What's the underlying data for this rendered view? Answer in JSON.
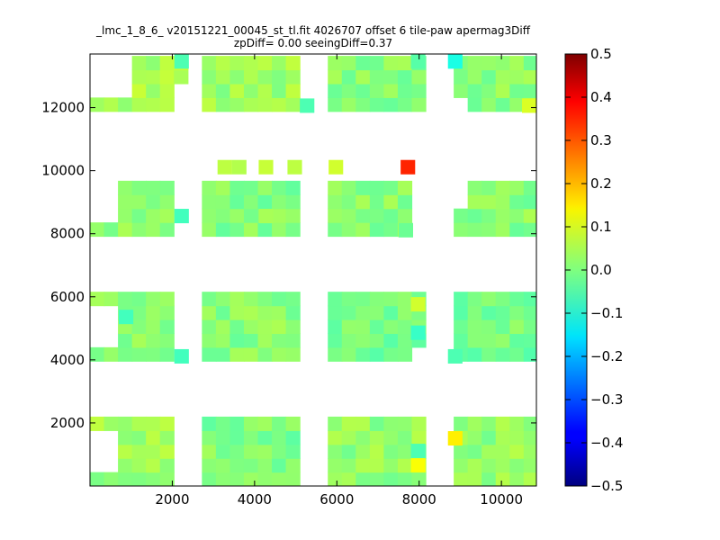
{
  "chart_data": {
    "type": "heatmap",
    "title": "_lmc_1_8_6_ v20151221_00045_st_tl.fit 4026707 offset 6 tile-paw apermag3Diff",
    "subtitle": "zpDiff= 0.00 seeingDiff=0.37",
    "xlabel": "",
    "ylabel": "",
    "xlim": [
      0,
      10850
    ],
    "ylim": [
      0,
      13700
    ],
    "x_ticks": [
      "2000",
      "4000",
      "6000",
      "8000",
      "10000"
    ],
    "y_ticks": [
      "2000",
      "4000",
      "6000",
      "8000",
      "10000",
      "12000"
    ],
    "cell_size": [
      340,
      440
    ],
    "colorbar": {
      "colormap": "jet",
      "range": [
        -0.5,
        0.5
      ],
      "ticks": [
        "0.5",
        "0.4",
        "0.3",
        "0.2",
        "0.1",
        "0.0",
        "−0.1",
        "−0.2",
        "−0.3",
        "−0.4",
        "−0.5"
      ]
    },
    "default_value": 0.02,
    "blocks": [
      {
        "x": [
          0,
          2000
        ],
        "y": [
          0,
          2080
        ],
        "value": 0.03
      },
      {
        "x": [
          2700,
          5100
        ],
        "y": [
          0,
          2080
        ],
        "value": 0.0
      },
      {
        "x": [
          5800,
          8000
        ],
        "y": [
          0,
          2080
        ],
        "value": 0.02
      },
      {
        "x": [
          8700,
          10850
        ],
        "y": [
          0,
          2080
        ],
        "value": 0.02
      },
      {
        "x": [
          0,
          2000
        ],
        "y": [
          3900,
          6000
        ],
        "value": 0.01
      },
      {
        "x": [
          2700,
          5100
        ],
        "y": [
          3900,
          6000
        ],
        "value": 0.01
      },
      {
        "x": [
          5800,
          8000
        ],
        "y": [
          3900,
          6000
        ],
        "value": -0.01
      },
      {
        "x": [
          8700,
          10850
        ],
        "y": [
          3900,
          6000
        ],
        "value": -0.01
      },
      {
        "x": [
          0,
          2000
        ],
        "y": [
          7900,
          9900
        ],
        "value": 0.01
      },
      {
        "x": [
          2700,
          5100
        ],
        "y": [
          7900,
          9900
        ],
        "value": 0.0
      },
      {
        "x": [
          5800,
          7800
        ],
        "y": [
          7900,
          9900
        ],
        "value": 0.01
      },
      {
        "x": [
          8700,
          10850
        ],
        "y": [
          7900,
          9900
        ],
        "value": 0.01
      },
      {
        "x": [
          0,
          2400
        ],
        "y": [
          11850,
          13700
        ],
        "value": 0.04
      },
      {
        "x": [
          2700,
          5100
        ],
        "y": [
          11850,
          13700
        ],
        "value": 0.03
      },
      {
        "x": [
          5800,
          8000
        ],
        "y": [
          11850,
          13700
        ],
        "value": 0.01
      },
      {
        "x": [
          8700,
          10850
        ],
        "y": [
          11850,
          13700
        ],
        "value": 0.01
      }
    ],
    "gaps": [
      {
        "x": [
          0,
          650
        ],
        "y": [
          350,
          1650
        ]
      },
      {
        "x": [
          0,
          650
        ],
        "y": [
          4350,
          5560
        ]
      },
      {
        "x": [
          0,
          650
        ],
        "y": [
          8350,
          9500
        ]
      },
      {
        "x": [
          0,
          1000
        ],
        "y": [
          12300,
          13700
        ]
      },
      {
        "x": [
          2050,
          2400
        ],
        "y": [
          11850,
          12850
        ]
      },
      {
        "x": [
          0,
          1000
        ],
        "y": [
          13250,
          13700
        ]
      },
      {
        "x": [
          7800,
          8000
        ],
        "y": [
          3900,
          4350
        ]
      },
      {
        "x": [
          8000,
          8400
        ],
        "y": [
          5150,
          6000
        ]
      },
      {
        "x": [
          8700,
          9150
        ],
        "y": [
          11850,
          12300
        ]
      },
      {
        "x": [
          8700,
          9150
        ],
        "y": [
          9000,
          9900
        ]
      },
      {
        "x": [
          8000,
          8450
        ],
        "y": [
          0,
          850
        ]
      },
      {
        "x": [
          2050,
          2700
        ],
        "y": [
          7900,
          9900
        ]
      },
      {
        "x": [
          2050,
          2700
        ],
        "y": [
          3900,
          4250
        ]
      }
    ],
    "cells": [
      {
        "x": 7550,
        "y": 9900,
        "value": 0.34
      },
      {
        "x": 5800,
        "y": 9900,
        "value": 0.08
      },
      {
        "x": 3100,
        "y": 9900,
        "value": 0.06
      },
      {
        "x": 3450,
        "y": 9900,
        "value": 0.05
      },
      {
        "x": 4100,
        "y": 9900,
        "value": 0.07
      },
      {
        "x": 4800,
        "y": 9900,
        "value": 0.06
      },
      {
        "x": 8700,
        "y": 1300,
        "value": 0.14
      },
      {
        "x": 7800,
        "y": 450,
        "value": 0.12
      },
      {
        "x": 7800,
        "y": 900,
        "value": -0.05
      },
      {
        "x": 7800,
        "y": 5550,
        "value": 0.08
      },
      {
        "x": 7800,
        "y": 4650,
        "value": -0.07
      },
      {
        "x": 8700,
        "y": 3900,
        "value": -0.05
      },
      {
        "x": 8700,
        "y": 13250,
        "value": -0.1
      },
      {
        "x": 7800,
        "y": 13250,
        "value": -0.04
      },
      {
        "x": 2050,
        "y": 13250,
        "value": -0.05
      },
      {
        "x": 10500,
        "y": 11850,
        "value": 0.09
      },
      {
        "x": 700,
        "y": 5150,
        "value": -0.06
      },
      {
        "x": 2050,
        "y": 8350,
        "value": -0.06
      },
      {
        "x": 2050,
        "y": 3900,
        "value": -0.06
      },
      {
        "x": 4100,
        "y": 8350,
        "value": 0.04
      },
      {
        "x": 5100,
        "y": 11850,
        "value": -0.05
      },
      {
        "x": 7500,
        "y": 7900,
        "value": -0.02
      }
    ]
  }
}
